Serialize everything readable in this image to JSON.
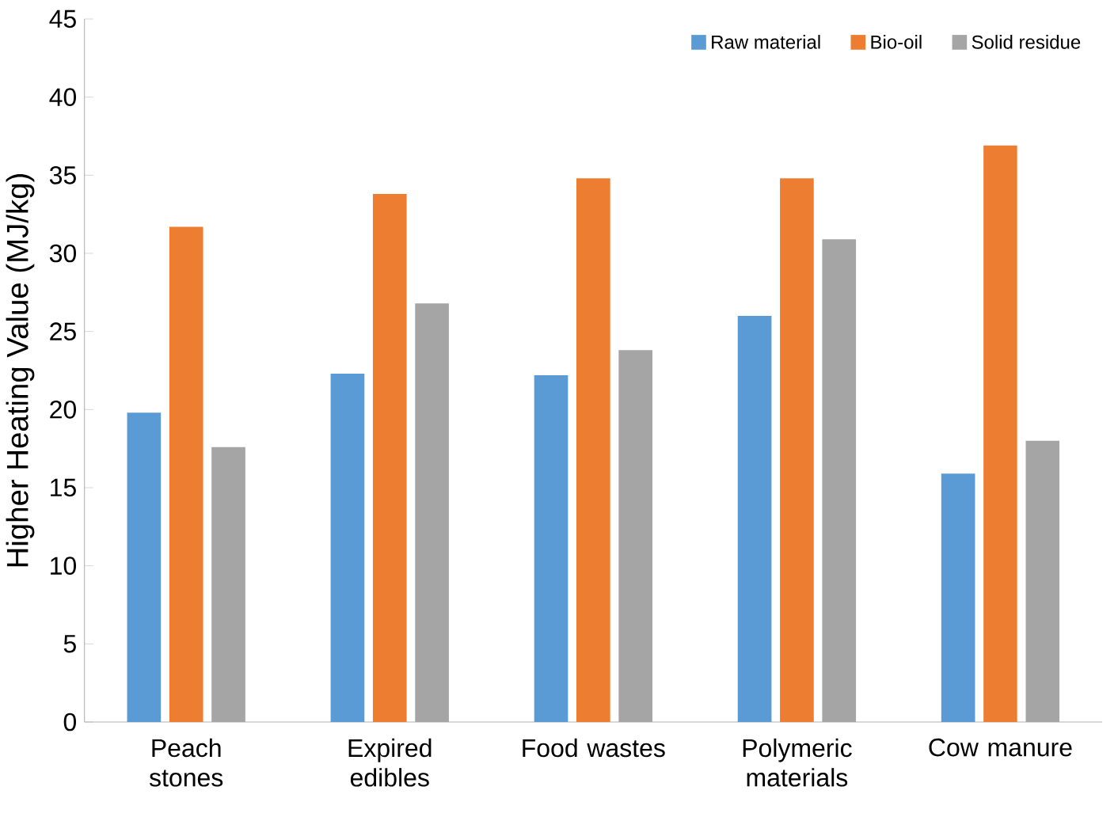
{
  "chart_data": {
    "type": "bar",
    "ylabel": "Higher Heating Value (MJ/kg)",
    "categories": [
      "Peach stones",
      "Expired edibles",
      "Food wastes",
      "Polymeric materials",
      "Cow manure"
    ],
    "series": [
      {
        "name": "Raw material",
        "color": "#5b9bd5",
        "values": [
          19.8,
          22.3,
          22.2,
          26.0,
          15.9
        ]
      },
      {
        "name": "Bio-oil",
        "color": "#ed7d31",
        "values": [
          31.7,
          33.8,
          34.8,
          34.8,
          36.9
        ]
      },
      {
        "name": "Solid residue",
        "color": "#a5a5a5",
        "values": [
          17.6,
          26.8,
          23.8,
          30.9,
          18.0
        ]
      }
    ],
    "ylim": [
      0,
      45
    ],
    "yticks": [
      0,
      5,
      10,
      15,
      20,
      25,
      30,
      35,
      40,
      45
    ],
    "grid": false,
    "legend": "top right"
  }
}
